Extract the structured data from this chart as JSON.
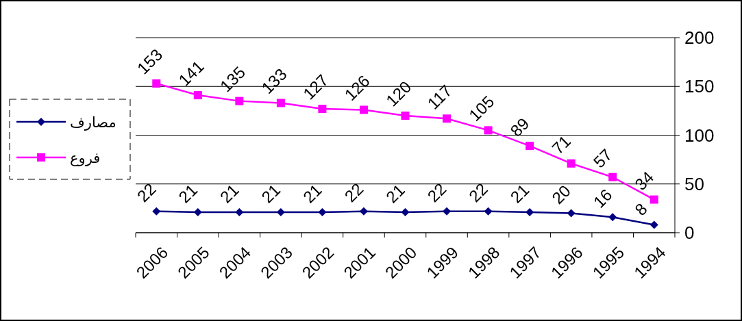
{
  "chart_data": {
    "type": "line",
    "categories": [
      "2006",
      "2005",
      "2004",
      "2003",
      "2002",
      "2001",
      "2000",
      "1999",
      "1998",
      "1997",
      "1996",
      "1995",
      "1994"
    ],
    "series": [
      {
        "name": "مصارف",
        "color": "#000080",
        "marker": "diamond",
        "values": [
          22,
          21,
          21,
          21,
          21,
          22,
          21,
          22,
          22,
          21,
          20,
          16,
          8
        ]
      },
      {
        "name": "فروع",
        "color": "#ff00ff",
        "marker": "square",
        "values": [
          153,
          141,
          135,
          133,
          127,
          126,
          120,
          117,
          105,
          89,
          71,
          57,
          34
        ]
      }
    ],
    "ylim": [
      0,
      200
    ],
    "yticks": [
      0,
      50,
      100,
      150,
      200
    ],
    "grid": "y",
    "legend": "left",
    "data_labels": true
  }
}
